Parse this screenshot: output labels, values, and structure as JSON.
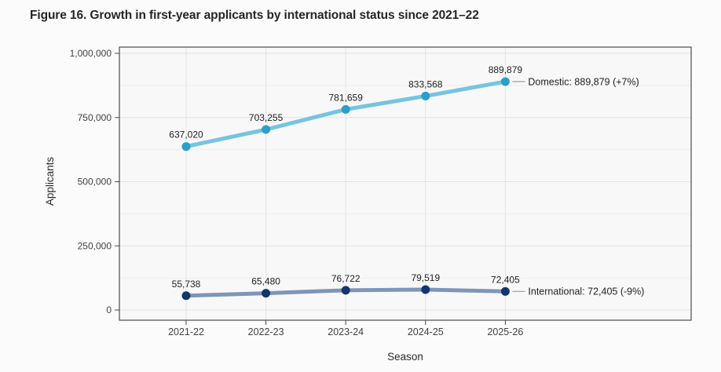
{
  "title": "Figure 16. Growth in first-year applicants by international status since 2021–22",
  "chart_data": {
    "type": "line",
    "title": "Figure 16. Growth in first-year applicants by international status since 2021–22",
    "categories": [
      "2021-22",
      "2022-23",
      "2023-24",
      "2024-25",
      "2025-26"
    ],
    "series": [
      {
        "name": "Domestic",
        "values": [
          637020,
          703255,
          781659,
          833568,
          889879
        ],
        "line_color": "#76c4df",
        "marker_color": "#2d9ec6",
        "annotation": "Domestic: 889,879 (+7%)"
      },
      {
        "name": "International",
        "values": [
          55738,
          65480,
          76722,
          79519,
          72405
        ],
        "line_color": "#7e96b7",
        "marker_color": "#14356b",
        "annotation": "International: 72,405 (-9%)"
      }
    ],
    "xlabel": "Season",
    "ylabel": "Applicants",
    "ylim": [
      0,
      1000000
    ],
    "y_major_ticks": [
      0,
      250000,
      500000,
      750000,
      1000000
    ],
    "y_minor_ticks": [
      125000,
      375000,
      625000,
      875000
    ],
    "grid": "on",
    "data_labels": "on",
    "legend_position": "right-edge-annotations"
  },
  "style": {
    "page_bg": "#fbfbfb",
    "panel_bg": "#f8f8f9",
    "panel_border": "#4c4c4c",
    "grid_major": "#e4e4e6",
    "grid_minor": "#eeeef0",
    "tick_label_color": "#424242",
    "axis_title_color": "#2b2b2b",
    "data_label_color": "#1f1f1f",
    "annotation_color": "#1f1f1f",
    "connector_color": "#9b9b9b"
  }
}
